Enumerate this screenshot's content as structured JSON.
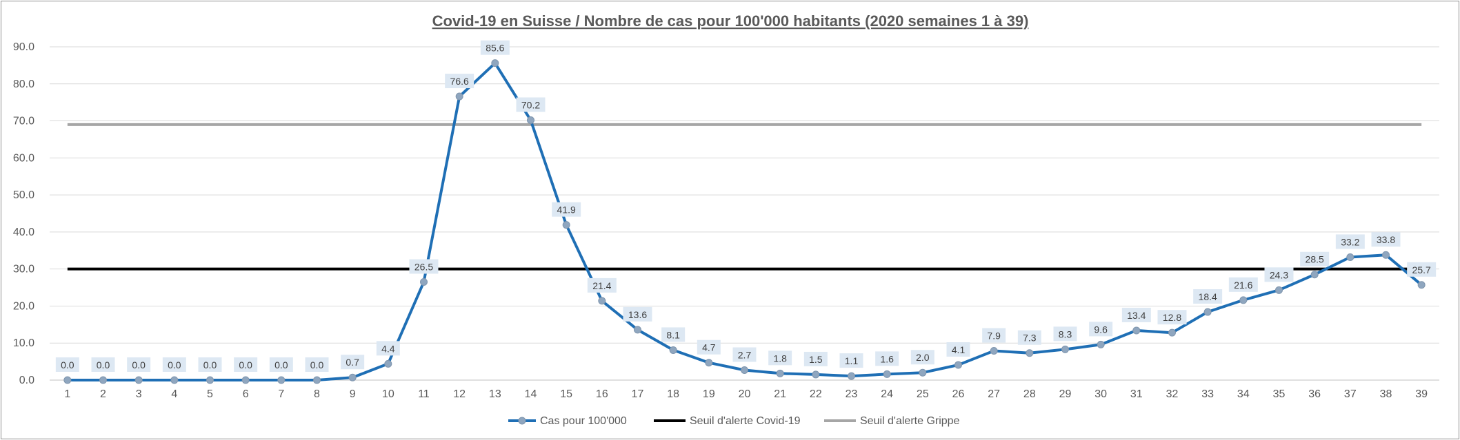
{
  "chart_data": {
    "type": "line",
    "title": "Covid-19 en Suisse / Nombre de cas pour 100'000 habitants (2020 semaines 1 à 39)",
    "xlabel": "",
    "ylabel": "",
    "categories": [
      "1",
      "2",
      "3",
      "4",
      "5",
      "6",
      "7",
      "8",
      "9",
      "10",
      "11",
      "12",
      "13",
      "14",
      "15",
      "16",
      "17",
      "18",
      "19",
      "20",
      "21",
      "22",
      "23",
      "24",
      "25",
      "26",
      "27",
      "28",
      "29",
      "30",
      "31",
      "32",
      "33",
      "34",
      "35",
      "36",
      "37",
      "38",
      "39"
    ],
    "ylim": [
      0,
      90
    ],
    "yticks": [
      "0.0",
      "10.0",
      "20.0",
      "30.0",
      "40.0",
      "50.0",
      "60.0",
      "70.0",
      "80.0",
      "90.0"
    ],
    "grid": true,
    "legend_position": "bottom",
    "series": [
      {
        "name": "Cas pour 100'000",
        "color": "#1f6fb5",
        "marker_color": "#8fa6bf",
        "values": [
          0.0,
          0.0,
          0.0,
          0.0,
          0.0,
          0.0,
          0.0,
          0.0,
          0.7,
          4.4,
          26.5,
          76.6,
          85.6,
          70.2,
          41.9,
          21.4,
          13.6,
          8.1,
          4.7,
          2.7,
          1.8,
          1.5,
          1.1,
          1.6,
          2.0,
          4.1,
          7.9,
          7.3,
          8.3,
          9.6,
          13.4,
          12.8,
          18.4,
          21.6,
          24.3,
          28.5,
          33.2,
          33.8,
          25.7
        ],
        "labels": [
          "0.0",
          "0.0",
          "0.0",
          "0.0",
          "0.0",
          "0.0",
          "0.0",
          "0.0",
          "0.7",
          "4.4",
          "26.5",
          "76.6",
          "85.6",
          "70.2",
          "41.9",
          "21.4",
          "13.6",
          "8.1",
          "4.7",
          "2.7",
          "1.8",
          "1.5",
          "1.1",
          "1.6",
          "2.0",
          "4.1",
          "7.9",
          "7.3",
          "8.3",
          "9.6",
          "13.4",
          "12.8",
          "18.4",
          "21.6",
          "24.3",
          "28.5",
          "33.2",
          "33.8",
          "25.7"
        ]
      },
      {
        "name": "Seuil d'alerte Covid-19",
        "color": "#000000",
        "constant": 30
      },
      {
        "name": "Seuil d'alerte Grippe",
        "color": "#a6a6a6",
        "constant": 69
      }
    ]
  }
}
